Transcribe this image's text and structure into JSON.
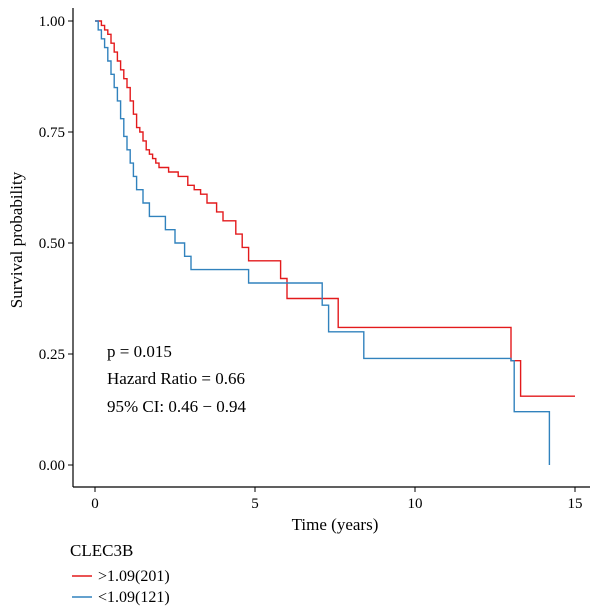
{
  "chart_data": {
    "type": "line",
    "subtype": "kaplan-meier",
    "xlabel": "Time (years)",
    "ylabel": "Survival probability",
    "xlim": [
      0,
      15
    ],
    "ylim": [
      0,
      1
    ],
    "x_ticks": [
      0,
      5,
      10,
      15
    ],
    "y_ticks": [
      0.0,
      0.25,
      0.5,
      0.75,
      1.0
    ],
    "x_tick_labels": [
      "0",
      "5",
      "10",
      "15"
    ],
    "y_tick_labels": [
      "0.00",
      "0.25",
      "0.50",
      "0.75",
      "1.00"
    ],
    "grid": false,
    "annotations": [
      "p = 0.015",
      "Hazard Ratio = 0.66",
      "95% CI: 0.46 − 0.94"
    ],
    "legend": {
      "title": "CLEC3B",
      "placement": "bottom-left",
      "entries": [
        ">1.09(201)",
        "<1.09(121)"
      ]
    },
    "series": [
      {
        "name": ">1.09(201)",
        "color": "#e31a1c",
        "x": [
          0,
          0.2,
          0.3,
          0.4,
          0.5,
          0.6,
          0.7,
          0.8,
          0.9,
          1.0,
          1.1,
          1.2,
          1.3,
          1.4,
          1.5,
          1.6,
          1.7,
          1.8,
          1.9,
          2.0,
          2.3,
          2.6,
          2.9,
          3.1,
          3.3,
          3.5,
          3.8,
          4.0,
          4.4,
          4.6,
          4.8,
          5.2,
          5.8,
          6.0,
          7.5,
          7.6,
          12.8,
          13.0,
          13.3,
          15.0
        ],
        "y": [
          1.0,
          0.99,
          0.98,
          0.97,
          0.95,
          0.93,
          0.91,
          0.89,
          0.87,
          0.85,
          0.82,
          0.79,
          0.76,
          0.75,
          0.73,
          0.71,
          0.7,
          0.69,
          0.68,
          0.67,
          0.66,
          0.65,
          0.63,
          0.62,
          0.61,
          0.59,
          0.57,
          0.55,
          0.52,
          0.49,
          0.46,
          0.46,
          0.42,
          0.375,
          0.375,
          0.31,
          0.31,
          0.235,
          0.155,
          0.155
        ]
      },
      {
        "name": "<1.09(121)",
        "color": "#3182bd",
        "x": [
          0,
          0.1,
          0.2,
          0.3,
          0.4,
          0.5,
          0.6,
          0.7,
          0.8,
          0.9,
          1.0,
          1.1,
          1.2,
          1.3,
          1.5,
          1.7,
          2.0,
          2.2,
          2.5,
          2.8,
          3.0,
          3.5,
          4.8,
          5.2,
          7.1,
          7.3,
          8.4,
          12.9,
          13.0,
          13.1,
          13.5,
          14.2,
          14.2
        ],
        "y": [
          1.0,
          0.98,
          0.96,
          0.94,
          0.91,
          0.88,
          0.85,
          0.82,
          0.78,
          0.74,
          0.71,
          0.68,
          0.65,
          0.62,
          0.59,
          0.56,
          0.56,
          0.53,
          0.5,
          0.47,
          0.44,
          0.44,
          0.41,
          0.41,
          0.36,
          0.3,
          0.24,
          0.24,
          0.235,
          0.12,
          0.12,
          0.12,
          0.0
        ]
      }
    ]
  }
}
